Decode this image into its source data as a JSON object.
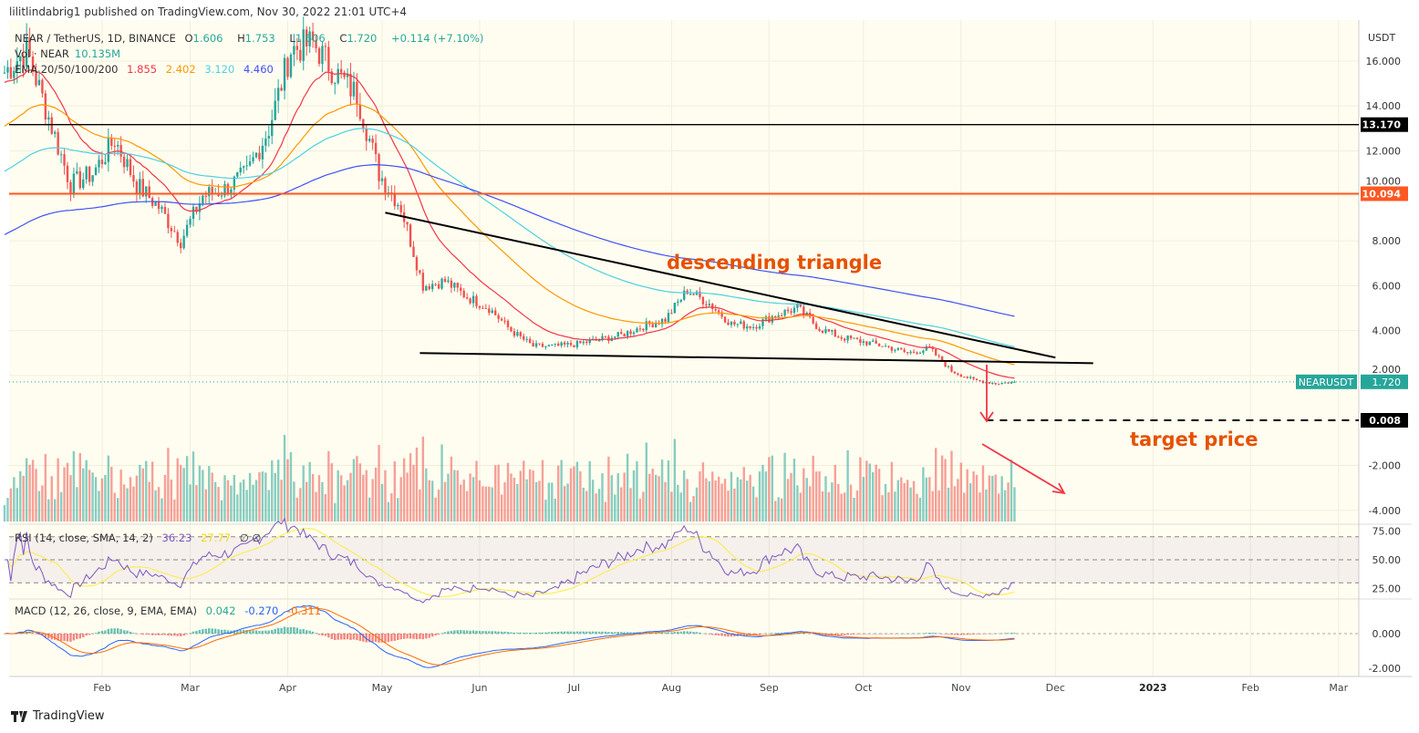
{
  "header": {
    "published": "lilitlindabrig1 published on TradingView.com, Nov 30, 2022 21:01 UTC+4"
  },
  "legend": {
    "symbol": "NEAR / TetherUS, 1D, BINANCE",
    "open_label": "O",
    "open": "1.606",
    "high_label": "H",
    "high": "1.753",
    "low_label": "L",
    "low": "1.606",
    "close_label": "C",
    "close": "1.720",
    "change": "+0.114 (+7.10%)",
    "vol_label": "Vol · NEAR",
    "vol": "10.135M",
    "ema_label": "EMA 20/50/100/200",
    "ema20": "1.855",
    "ema50": "2.402",
    "ema100": "3.120",
    "ema200": "4.460",
    "rsi_label": "RSI (14, close, SMA, 14, 2)",
    "rsi": "36.23",
    "rsi_sma": "27.77",
    "rsi_extra": "∅ ∅",
    "macd_label": "MACD (12, 26, close, 9, EMA, EMA)",
    "macd_hist": "0.042",
    "macd": "-0.270",
    "macd_signal": "-0.311"
  },
  "annotations": {
    "pattern": "descending triangle",
    "target": "target price"
  },
  "price_tags": {
    "symbol": "NEARUSDT",
    "last": "1.720",
    "level1": "13.170",
    "level2": "10.094",
    "target": "0.008"
  },
  "axis": {
    "currency": "USDT",
    "price_ticks": [
      "16.000",
      "14.000",
      "12.000",
      "10.000",
      "8.000",
      "6.000",
      "4.000",
      "2.000",
      "-2.000",
      "-4.000"
    ],
    "rsi_ticks": [
      "75.00",
      "50.00",
      "25.00"
    ],
    "macd_ticks": [
      "0.000",
      "-2.000"
    ],
    "time_ticks": [
      "Feb",
      "Mar",
      "Apr",
      "May",
      "Jun",
      "Jul",
      "Aug",
      "Sep",
      "Oct",
      "Nov",
      "Dec",
      "2023",
      "Feb",
      "Mar"
    ]
  },
  "footer": {
    "brand": "TradingView"
  },
  "colors": {
    "bg": "#fffdf0",
    "up": "#26a69a",
    "down": "#ef5350",
    "ema20": "#f23645",
    "ema50": "#ff9800",
    "ema100": "#4dd0e1",
    "ema200": "#3f51f5",
    "rsi": "#7e57c2",
    "rsi_sma": "#ffeb3b",
    "macd": "#2962ff",
    "signal": "#ff6d00",
    "annotation": "#e65100"
  },
  "chart_data": {
    "type": "candlestick",
    "x_range": [
      "2022-01-01",
      "2023-03-31"
    ],
    "y_range": [
      -4.6,
      17.5
    ],
    "weekly_close_approx": {
      "start": "2022-01-01",
      "values": [
        15.5,
        16.5,
        13.5,
        10.5,
        11,
        12.5,
        10.5,
        9.5,
        8,
        10,
        10.3,
        11,
        13,
        16.5,
        16.8,
        15.5,
        14.5,
        11,
        9.5,
        6,
        6.2,
        5.5,
        5,
        4,
        3.3,
        3.3,
        3.4,
        3.6,
        3.8,
        4.2,
        4.5,
        5.8,
        5.2,
        4.3,
        4.2,
        4.7,
        5,
        4.1,
        3.7,
        3.5,
        3.3,
        3.0,
        3.2,
        2.2,
        1.8,
        1.65,
        1.72
      ]
    },
    "horizontal_levels": [
      {
        "price": 13.17,
        "color": "#000000"
      },
      {
        "price": 10.094,
        "color": "#ff5722"
      }
    ],
    "trendlines": [
      {
        "from": [
          "2022-05-02",
          9.25
        ],
        "to": [
          "2022-12-01",
          2.8
        ]
      },
      {
        "from": [
          "2022-05-13",
          3.0
        ],
        "to": [
          "2022-12-13",
          2.55
        ]
      }
    ],
    "target_line": {
      "from": "2022-11-09",
      "price": 0.008,
      "style": "dashed"
    },
    "rsi_levels": [
      70,
      50,
      30
    ],
    "last_price": 1.72
  }
}
